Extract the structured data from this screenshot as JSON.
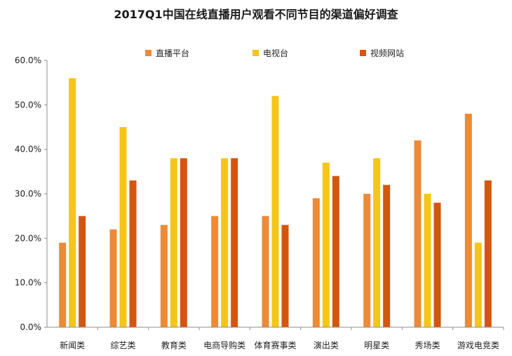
{
  "chart_data": {
    "type": "bar",
    "title": "2017Q1中国在线直播用户观看不同节目的渠道偏好调查",
    "xlabel": "",
    "ylabel": "",
    "ylim": [
      0,
      60
    ],
    "yticks": [
      "0.0%",
      "10.0%",
      "20.0%",
      "30.0%",
      "40.0%",
      "50.0%",
      "60.0%"
    ],
    "grid": false,
    "legend_position": "top",
    "categories": [
      "新闻类",
      "综艺类",
      "教育类",
      "电商导购类",
      "体育赛事类",
      "演出类",
      "明星类",
      "秀场类",
      "游戏电竞类"
    ],
    "series": [
      {
        "name": "直播平台",
        "color": "#ED8A35",
        "values": [
          19,
          22,
          23,
          25,
          25,
          29,
          30,
          42,
          48
        ]
      },
      {
        "name": "电视台",
        "color": "#F5C518",
        "values": [
          56,
          45,
          38,
          38,
          52,
          37,
          38,
          30,
          19
        ]
      },
      {
        "name": "视频网站",
        "color": "#D4560E",
        "values": [
          25,
          33,
          38,
          38,
          23,
          34,
          32,
          28,
          33
        ]
      }
    ]
  }
}
